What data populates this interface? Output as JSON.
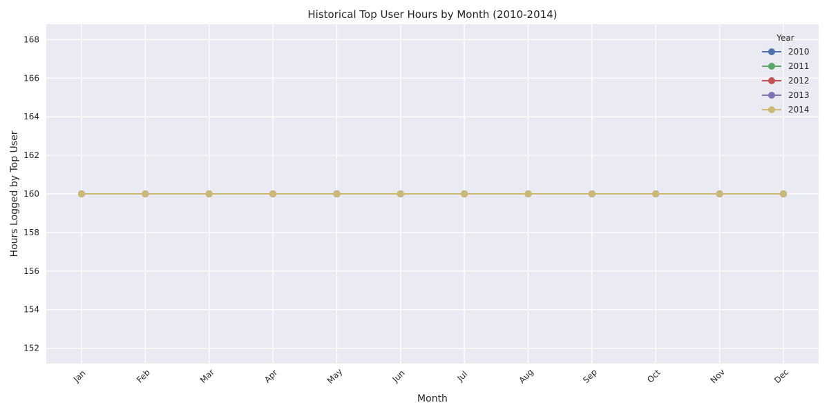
{
  "chart_data": {
    "type": "line",
    "title": "Historical Top User Hours by Month (2010-2014)",
    "xlabel": "Month",
    "ylabel": "Hours Logged by Top User",
    "categories": [
      "Jan",
      "Feb",
      "Mar",
      "Apr",
      "May",
      "Jun",
      "Jul",
      "Aug",
      "Sep",
      "Oct",
      "Nov",
      "Dec"
    ],
    "ylim": [
      151.2,
      168.8
    ],
    "yticks": [
      152,
      154,
      156,
      158,
      160,
      162,
      164,
      166,
      168
    ],
    "grid": true,
    "legend": {
      "title": "Year",
      "placement": "top-right"
    },
    "series": [
      {
        "name": "2010",
        "color": "#4c72b0",
        "values": [
          160,
          160,
          160,
          160,
          160,
          160,
          160,
          160,
          160,
          160,
          160,
          160
        ]
      },
      {
        "name": "2011",
        "color": "#55a868",
        "values": [
          160,
          160,
          160,
          160,
          160,
          160,
          160,
          160,
          160,
          160,
          160,
          160
        ]
      },
      {
        "name": "2012",
        "color": "#c44e52",
        "values": [
          160,
          160,
          160,
          160,
          160,
          160,
          160,
          160,
          160,
          160,
          160,
          160
        ]
      },
      {
        "name": "2013",
        "color": "#8172b3",
        "values": [
          160,
          160,
          160,
          160,
          160,
          160,
          160,
          160,
          160,
          160,
          160,
          160
        ]
      },
      {
        "name": "2014",
        "color": "#ccb974",
        "values": [
          160,
          160,
          160,
          160,
          160,
          160,
          160,
          160,
          160,
          160,
          160,
          160
        ]
      }
    ]
  }
}
